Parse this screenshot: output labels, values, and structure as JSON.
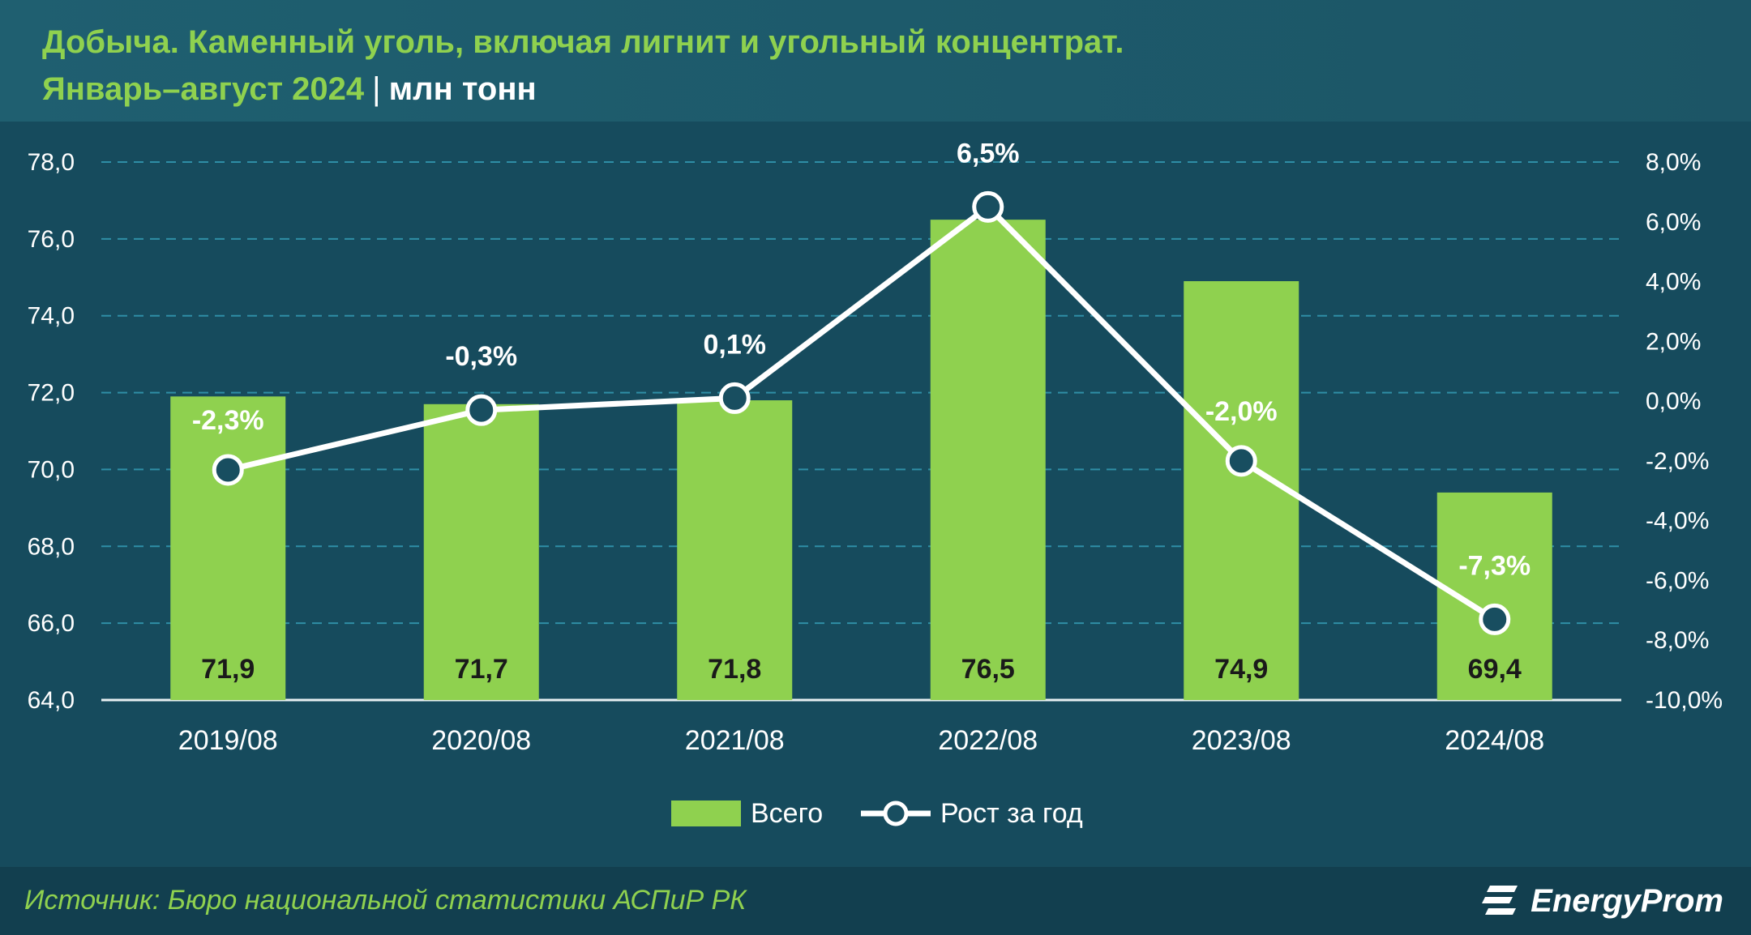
{
  "header": {
    "title_line1": "Добыча. Каменный уголь, включая лигнит и угольный концентрат.",
    "title_line2": "Январь–август 2024",
    "separator": "|",
    "unit": "млн тонн"
  },
  "chart_data": {
    "type": "bar",
    "categories": [
      "2019/08",
      "2020/08",
      "2021/08",
      "2022/08",
      "2023/08",
      "2024/08"
    ],
    "series": [
      {
        "name": "Всего",
        "type": "bar",
        "axis": "left",
        "values": [
          71.9,
          71.7,
          71.8,
          76.5,
          74.9,
          69.4
        ],
        "labels": [
          "71,9",
          "71,7",
          "71,8",
          "76,5",
          "74,9",
          "69,4"
        ],
        "color": "#8fd14f"
      },
      {
        "name": "Рост за год",
        "type": "line",
        "axis": "right",
        "values": [
          -2.3,
          -0.3,
          0.1,
          6.5,
          -2.0,
          -7.3
        ],
        "labels": [
          "-2,3%",
          "-0,3%",
          "0,1%",
          "6,5%",
          "-2,0%",
          "-7,3%"
        ],
        "color": "#ffffff"
      }
    ],
    "y_left": {
      "min": 64,
      "max": 78,
      "ticks": [
        64,
        66,
        68,
        70,
        72,
        74,
        76,
        78
      ],
      "tick_labels": [
        "64,0",
        "66,0",
        "68,0",
        "70,0",
        "72,0",
        "74,0",
        "76,0",
        "78,0"
      ]
    },
    "y_right": {
      "min": -10,
      "max": 8,
      "ticks": [
        -10,
        -8,
        -6,
        -4,
        -2,
        0,
        2,
        4,
        6,
        8
      ],
      "tick_labels": [
        "-10,0%",
        "-8,0%",
        "-6,0%",
        "-4,0%",
        "-2,0%",
        "0,0%",
        "2,0%",
        "4,0%",
        "6,0%",
        "8,0%"
      ]
    },
    "grid": true,
    "grid_style": "dashed",
    "legend_position": "bottom-center"
  },
  "legend": {
    "bar_label": "Всего",
    "line_label": "Рост за год"
  },
  "footer": {
    "source": "Источник: Бюро национальной статистики АСПиР РК",
    "brand": "EnergyProm"
  },
  "colors": {
    "background": "#184e60",
    "bar": "#8fd14f",
    "title": "#8fd14f",
    "line": "#ffffff",
    "grid": "#2f8ea6"
  }
}
